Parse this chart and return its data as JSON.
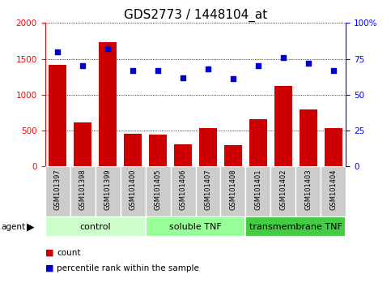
{
  "title": "GDS2773 / 1448104_at",
  "categories": [
    "GSM101397",
    "GSM101398",
    "GSM101399",
    "GSM101400",
    "GSM101405",
    "GSM101406",
    "GSM101407",
    "GSM101408",
    "GSM101401",
    "GSM101402",
    "GSM101403",
    "GSM101404"
  ],
  "counts": [
    1420,
    610,
    1730,
    450,
    440,
    305,
    530,
    300,
    660,
    1120,
    800,
    540
  ],
  "percentiles": [
    80,
    70,
    82,
    67,
    67,
    62,
    68,
    61,
    70,
    76,
    72,
    67
  ],
  "bar_color": "#cc0000",
  "dot_color": "#0000cc",
  "ylim_left": [
    0,
    2000
  ],
  "ylim_right": [
    0,
    100
  ],
  "yticks_left": [
    0,
    500,
    1000,
    1500,
    2000
  ],
  "yticks_right": [
    0,
    25,
    50,
    75,
    100
  ],
  "yticklabels_right": [
    "0",
    "25",
    "50",
    "75",
    "100%"
  ],
  "groups": [
    {
      "label": "control",
      "start": 0,
      "end": 3,
      "color": "#ccffcc"
    },
    {
      "label": "soluble TNF",
      "start": 4,
      "end": 7,
      "color": "#99ff99"
    },
    {
      "label": "transmembrane TNF",
      "start": 8,
      "end": 11,
      "color": "#44cc44"
    }
  ],
  "agent_label": "agent",
  "legend_count_label": "count",
  "legend_pct_label": "percentile rank within the sample",
  "background_color": "#ffffff",
  "tick_bg_color": "#cccccc",
  "title_fontsize": 11
}
